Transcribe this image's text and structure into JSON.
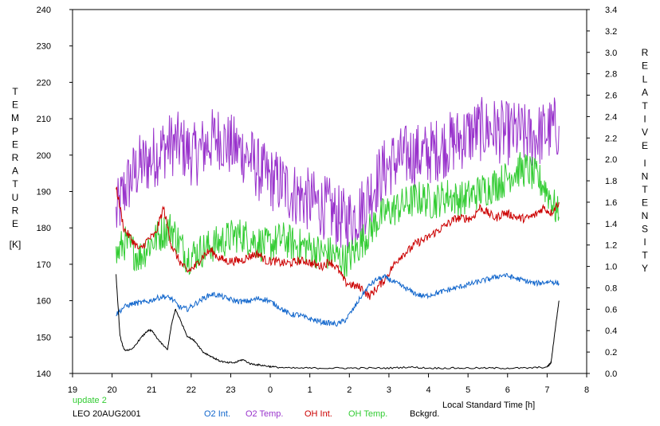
{
  "chart_data": {
    "type": "line",
    "left_axis": {
      "title_letters": [
        "T",
        "E",
        "M",
        "P",
        "E",
        "R",
        "A",
        "T",
        "U",
        "R",
        "E"
      ],
      "unit": "[K]",
      "ticks": [
        "240",
        "230",
        "220",
        "210",
        "200",
        "190",
        "180",
        "170",
        "160",
        "150",
        "140"
      ],
      "range": [
        140,
        240
      ]
    },
    "right_axis": {
      "title_word1": [
        "R",
        "E",
        "L",
        "A",
        "T",
        "I",
        "V",
        "E"
      ],
      "title_word2": [
        "I",
        "N",
        "T",
        "E",
        "N",
        "S",
        "I",
        "T",
        "Y"
      ],
      "ticks": [
        "3.4",
        "3.2",
        "3.0",
        "2.8",
        "2.6",
        "2.4",
        "2.2",
        "2.0",
        "1.8",
        "1.6",
        "1.4",
        "1.2",
        "1.0",
        "0.8",
        "0.6",
        "0.4",
        "0.2",
        "0.0"
      ],
      "range": [
        0.0,
        3.4
      ]
    },
    "x_axis": {
      "label": "Local Standard Time [h]",
      "ticks": [
        "19",
        "20",
        "21",
        "22",
        "23",
        "0",
        "1",
        "2",
        "3",
        "4",
        "5",
        "6",
        "7",
        "8"
      ],
      "range": [
        19,
        32
      ]
    },
    "grid": false,
    "series": [
      {
        "name": "O2 Temp.",
        "axis": "left",
        "color": "#9933cc",
        "x": [
          20.1,
          20.3,
          20.5,
          20.7,
          20.9,
          21.1,
          21.3,
          21.5,
          21.7,
          21.9,
          22.1,
          22.3,
          22.5,
          22.7,
          22.9,
          23.1,
          23.3,
          23.5,
          23.7,
          23.9,
          24.1,
          24.3,
          24.5,
          24.7,
          24.9,
          25.1,
          25.3,
          25.5,
          25.7,
          25.9,
          26.1,
          26.3,
          26.5,
          26.7,
          26.9,
          27.1,
          27.3,
          27.5,
          27.7,
          27.9,
          28.1,
          28.3,
          28.5,
          28.7,
          28.9,
          29.1,
          29.3,
          29.5,
          29.7,
          29.9,
          30.1,
          30.3,
          30.5,
          30.7,
          30.9,
          31.1,
          31.3
        ],
        "y": [
          183,
          190,
          194,
          197,
          198,
          200,
          202,
          203,
          203,
          201,
          200,
          202,
          204,
          205,
          203,
          202,
          201,
          199,
          196,
          194,
          193,
          192,
          190,
          189,
          188,
          187,
          186,
          185,
          183,
          182,
          183,
          185,
          189,
          193,
          196,
          198,
          199,
          200,
          200,
          200,
          201,
          202,
          203,
          204,
          205,
          206,
          207,
          207,
          207,
          206,
          206,
          206,
          205,
          205,
          206,
          207,
          208
        ],
        "noise": 9
      },
      {
        "name": "OH Temp.",
        "axis": "left",
        "color": "#33cc33",
        "x": [
          20.1,
          20.3,
          20.5,
          20.7,
          20.9,
          21.1,
          21.3,
          21.5,
          21.7,
          21.9,
          22.1,
          22.3,
          22.5,
          22.7,
          22.9,
          23.1,
          23.3,
          23.5,
          23.7,
          23.9,
          24.1,
          24.3,
          24.5,
          24.7,
          24.9,
          25.1,
          25.3,
          25.5,
          25.7,
          25.9,
          26.1,
          26.3,
          26.5,
          26.7,
          26.9,
          27.1,
          27.3,
          27.5,
          27.7,
          27.9,
          28.1,
          28.3,
          28.5,
          28.7,
          28.9,
          29.1,
          29.3,
          29.5,
          29.7,
          29.9,
          30.1,
          30.3,
          30.5,
          30.7,
          30.9,
          31.1,
          31.3
        ],
        "y": [
          172,
          176,
          174,
          172,
          175,
          177,
          179,
          180,
          176,
          172,
          173,
          174,
          175,
          176,
          177,
          178,
          178,
          177,
          176,
          175,
          176,
          177,
          176,
          175,
          175,
          174,
          173,
          173,
          172,
          171,
          173,
          176,
          179,
          182,
          184,
          185,
          186,
          187,
          188,
          188,
          187,
          188,
          189,
          188,
          188,
          189,
          190,
          191,
          192,
          193,
          195,
          196,
          196,
          194,
          192,
          188,
          183
        ],
        "noise": 5
      },
      {
        "name": "OH Int.",
        "axis": "right",
        "color": "#cc0000",
        "x": [
          20.1,
          20.3,
          20.5,
          20.7,
          20.9,
          21.1,
          21.3,
          21.5,
          21.7,
          21.9,
          22.1,
          22.3,
          22.5,
          22.7,
          22.9,
          23.1,
          23.3,
          23.5,
          23.7,
          23.9,
          24.1,
          24.3,
          24.5,
          24.7,
          24.9,
          25.1,
          25.3,
          25.5,
          25.7,
          25.9,
          26.1,
          26.3,
          26.5,
          26.7,
          26.9,
          27.1,
          27.3,
          27.5,
          27.7,
          27.9,
          28.1,
          28.3,
          28.5,
          28.7,
          28.9,
          29.1,
          29.3,
          29.5,
          29.7,
          29.9,
          30.1,
          30.3,
          30.5,
          30.7,
          30.9,
          31.1,
          31.3
        ],
        "y": [
          1.75,
          1.35,
          1.25,
          1.15,
          1.25,
          1.3,
          1.55,
          1.2,
          1.05,
          0.95,
          1.0,
          1.1,
          1.15,
          1.08,
          1.05,
          1.05,
          1.06,
          1.1,
          1.12,
          1.05,
          1.05,
          1.03,
          1.03,
          1.05,
          1.05,
          1.02,
          1.0,
          1.05,
          0.98,
          0.85,
          0.82,
          0.8,
          0.72,
          0.8,
          0.88,
          1.0,
          1.1,
          1.15,
          1.22,
          1.25,
          1.3,
          1.35,
          1.4,
          1.45,
          1.45,
          1.45,
          1.55,
          1.5,
          1.45,
          1.5,
          1.48,
          1.45,
          1.45,
          1.48,
          1.55,
          1.5,
          1.6
        ],
        "noise": 0.04
      },
      {
        "name": "O2 Int.",
        "axis": "right",
        "color": "#1166cc",
        "x": [
          20.1,
          20.3,
          20.5,
          20.7,
          20.9,
          21.1,
          21.3,
          21.5,
          21.7,
          21.9,
          22.1,
          22.3,
          22.5,
          22.7,
          22.9,
          23.1,
          23.3,
          23.5,
          23.7,
          23.9,
          24.1,
          24.3,
          24.5,
          24.7,
          24.9,
          25.1,
          25.3,
          25.5,
          25.7,
          25.9,
          26.1,
          26.3,
          26.5,
          26.7,
          26.9,
          27.1,
          27.3,
          27.5,
          27.7,
          27.9,
          28.1,
          28.3,
          28.5,
          28.7,
          28.9,
          29.1,
          29.3,
          29.5,
          29.7,
          29.9,
          30.1,
          30.3,
          30.5,
          30.7,
          30.9,
          31.1,
          31.3
        ],
        "y": [
          0.55,
          0.62,
          0.65,
          0.66,
          0.67,
          0.7,
          0.72,
          0.7,
          0.62,
          0.6,
          0.65,
          0.7,
          0.74,
          0.73,
          0.7,
          0.68,
          0.67,
          0.68,
          0.7,
          0.69,
          0.65,
          0.6,
          0.55,
          0.55,
          0.52,
          0.5,
          0.48,
          0.47,
          0.46,
          0.5,
          0.6,
          0.72,
          0.82,
          0.88,
          0.9,
          0.86,
          0.82,
          0.78,
          0.74,
          0.72,
          0.74,
          0.76,
          0.78,
          0.8,
          0.82,
          0.84,
          0.86,
          0.88,
          0.9,
          0.92,
          0.9,
          0.88,
          0.86,
          0.84,
          0.85,
          0.86,
          0.84
        ],
        "noise": 0.025
      },
      {
        "name": "Bckgrd.",
        "axis": "right",
        "color": "#000000",
        "x": [
          20.1,
          20.2,
          20.3,
          20.5,
          20.7,
          20.9,
          21.0,
          21.2,
          21.4,
          21.5,
          21.6,
          21.7,
          21.9,
          22.1,
          22.3,
          22.5,
          22.7,
          22.9,
          23.1,
          23.3,
          23.5,
          23.7,
          23.9,
          24.1,
          24.5,
          25.0,
          25.5,
          26.0,
          26.5,
          27.0,
          27.5,
          28.0,
          28.5,
          29.0,
          29.5,
          30.0,
          30.5,
          31.0,
          31.1,
          31.2,
          31.3
        ],
        "y": [
          0.92,
          0.35,
          0.22,
          0.22,
          0.32,
          0.4,
          0.4,
          0.3,
          0.22,
          0.45,
          0.6,
          0.52,
          0.35,
          0.3,
          0.2,
          0.16,
          0.12,
          0.1,
          0.1,
          0.13,
          0.09,
          0.08,
          0.07,
          0.06,
          0.05,
          0.05,
          0.05,
          0.05,
          0.05,
          0.05,
          0.06,
          0.05,
          0.05,
          0.05,
          0.05,
          0.05,
          0.05,
          0.06,
          0.1,
          0.4,
          0.68
        ],
        "noise": 0.008
      }
    ]
  },
  "footer": {
    "update": "update 2",
    "site_date": "LEO 20AUG2001",
    "legend": [
      {
        "label": "O2 Int.",
        "color": "#1166cc"
      },
      {
        "label": "O2 Temp.",
        "color": "#9933cc"
      },
      {
        "label": "OH Int.",
        "color": "#cc0000"
      },
      {
        "label": "OH Temp.",
        "color": "#33cc33"
      },
      {
        "label": "Bckgrd.",
        "color": "#000000"
      }
    ]
  }
}
